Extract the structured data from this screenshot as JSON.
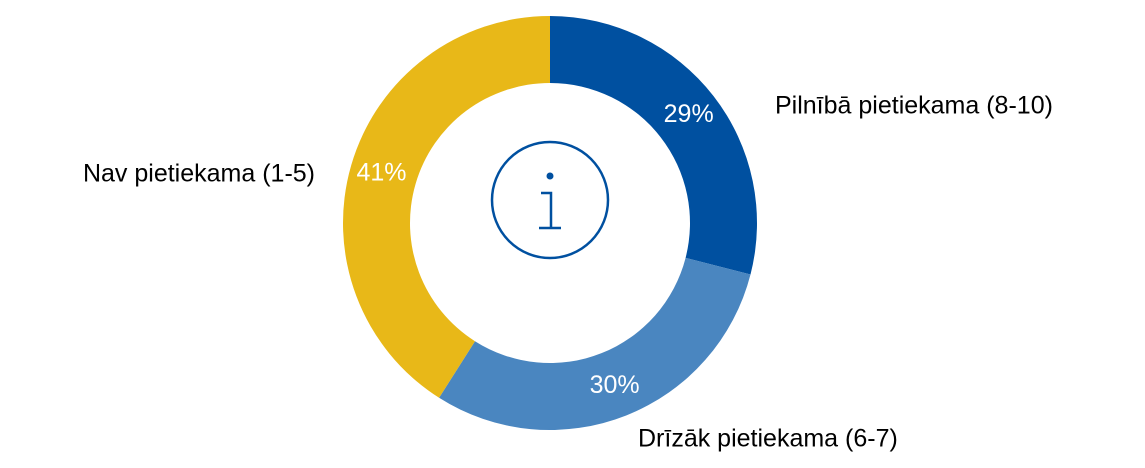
{
  "chart_data": {
    "type": "pie",
    "donut": true,
    "categories": [
      "Pilnībā pietiekama (8-10)",
      "Drīzāk pietiekama (6-7)",
      "Nav pietiekama (1-5)"
    ],
    "values": [
      29,
      30,
      41
    ],
    "value_labels": [
      "29%",
      "30%",
      "41%"
    ],
    "colors": [
      "#0050a0",
      "#4a86c0",
      "#e8b818"
    ]
  }
}
